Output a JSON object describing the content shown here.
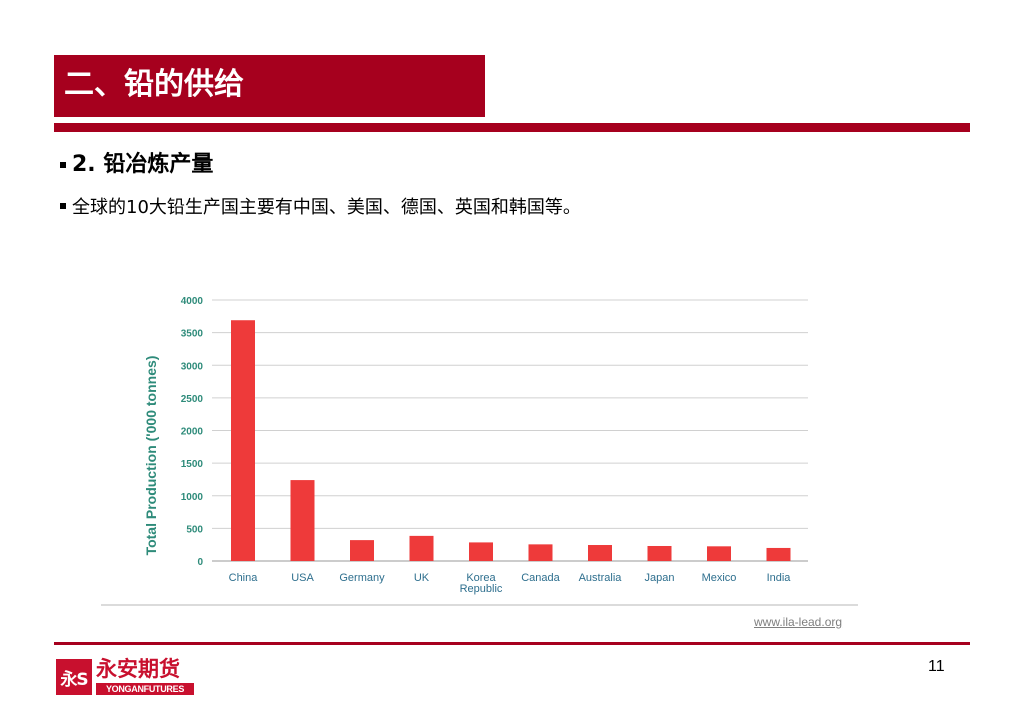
{
  "slide": {
    "title": "二、铅的供给",
    "heading": "2. 铅冶炼产量",
    "bullet": "全球的10大铅生产国主要有中国、美国、德国、英国和韩国等。",
    "source": "www.ila-lead.org",
    "page_number": "11"
  },
  "logo": {
    "cn": "永安期货",
    "en": "YONGANFUTURES",
    "mark": "永S"
  },
  "colors": {
    "accent": "#a6001e",
    "bar": "#ee3a3a",
    "axis_text": "#2e8b7a"
  },
  "chart_data": {
    "type": "bar",
    "categories": [
      "China",
      "USA",
      "Germany",
      "UK",
      "Korea Republic",
      "Canada",
      "Australia",
      "Japan",
      "Mexico",
      "India"
    ],
    "category_lines": [
      [
        "China"
      ],
      [
        "USA"
      ],
      [
        "Germany"
      ],
      [
        "UK"
      ],
      [
        "Korea",
        "Republic"
      ],
      [
        "Canada"
      ],
      [
        "Australia"
      ],
      [
        "Japan"
      ],
      [
        "Mexico"
      ],
      [
        "India"
      ]
    ],
    "values": [
      3690,
      1240,
      320,
      385,
      285,
      255,
      245,
      230,
      225,
      200
    ],
    "title": "",
    "xlabel": "",
    "ylabel": "Total Production ('000 tonnes)",
    "ylim": [
      0,
      4000
    ],
    "yticks": [
      0,
      500,
      1000,
      1500,
      2000,
      2500,
      3000,
      3500,
      4000
    ],
    "grid": true,
    "legend": "none"
  }
}
